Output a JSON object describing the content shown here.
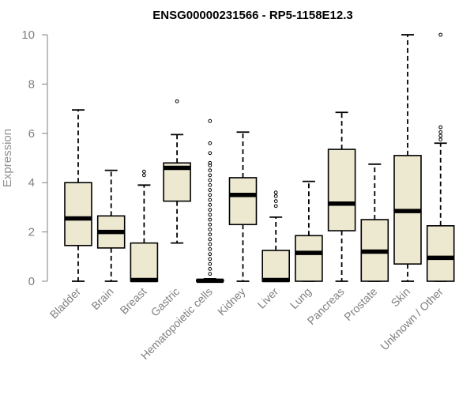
{
  "chart_data": {
    "type": "boxplot",
    "title": "ENSG00000231566 - RP5-1158E12.3",
    "xlabel": "",
    "ylabel": "Expression",
    "ylim": [
      0,
      10
    ],
    "yticks": [
      0,
      2,
      4,
      6,
      8,
      10
    ],
    "box_fill": "#ede8d0",
    "categories": [
      "Bladder",
      "Brain",
      "Breast",
      "Gastric",
      "Hematopoietic cells",
      "Kidney",
      "Liver",
      "Lung",
      "Pancreas",
      "Prostate",
      "Skin",
      "Unknown / Other"
    ],
    "boxes": [
      {
        "name": "Bladder",
        "min": 0,
        "q1": 1.45,
        "median": 2.55,
        "q3": 4.0,
        "max": 6.95,
        "outliers": []
      },
      {
        "name": "Brain",
        "min": 0,
        "q1": 1.35,
        "median": 2.0,
        "q3": 2.65,
        "max": 4.5,
        "outliers": []
      },
      {
        "name": "Breast",
        "min": 0,
        "q1": 0,
        "median": 0.05,
        "q3": 1.55,
        "max": 3.9,
        "outliers": [
          4.3,
          4.45
        ]
      },
      {
        "name": "Gastric",
        "min": 1.55,
        "q1": 3.25,
        "median": 4.6,
        "q3": 4.8,
        "max": 5.95,
        "outliers": [
          7.3
        ]
      },
      {
        "name": "Hematopoietic cells",
        "min": 0,
        "q1": 0,
        "median": 0.02,
        "q3": 0.05,
        "max": 0.1,
        "outliers": [
          0.3,
          0.5,
          0.7,
          0.9,
          1.1,
          1.3,
          1.5,
          1.7,
          1.9,
          2.1,
          2.3,
          2.5,
          2.7,
          2.9,
          3.1,
          3.3,
          3.5,
          3.7,
          3.9,
          4.1,
          4.3,
          4.5,
          4.7,
          4.8,
          5.2,
          5.6,
          6.5
        ]
      },
      {
        "name": "Kidney",
        "min": 0,
        "q1": 2.3,
        "median": 3.5,
        "q3": 4.2,
        "max": 6.05,
        "outliers": []
      },
      {
        "name": "Liver",
        "min": 0,
        "q1": 0,
        "median": 0.05,
        "q3": 1.25,
        "max": 2.6,
        "outliers": [
          3.05,
          3.25,
          3.45,
          3.6
        ]
      },
      {
        "name": "Lung",
        "min": 0,
        "q1": 0,
        "median": 1.15,
        "q3": 1.85,
        "max": 4.05,
        "outliers": []
      },
      {
        "name": "Pancreas",
        "min": 0,
        "q1": 2.05,
        "median": 3.15,
        "q3": 5.35,
        "max": 6.85,
        "outliers": []
      },
      {
        "name": "Prostate",
        "min": 0,
        "q1": 0,
        "median": 1.2,
        "q3": 2.5,
        "max": 4.75,
        "outliers": []
      },
      {
        "name": "Skin",
        "min": 0,
        "q1": 0.7,
        "median": 2.85,
        "q3": 5.1,
        "max": 10.0,
        "outliers": []
      },
      {
        "name": "Unknown / Other",
        "min": 0,
        "q1": 0,
        "median": 0.95,
        "q3": 2.25,
        "max": 5.6,
        "outliers": [
          5.75,
          5.9,
          6.05,
          6.25,
          10.0
        ]
      }
    ]
  }
}
